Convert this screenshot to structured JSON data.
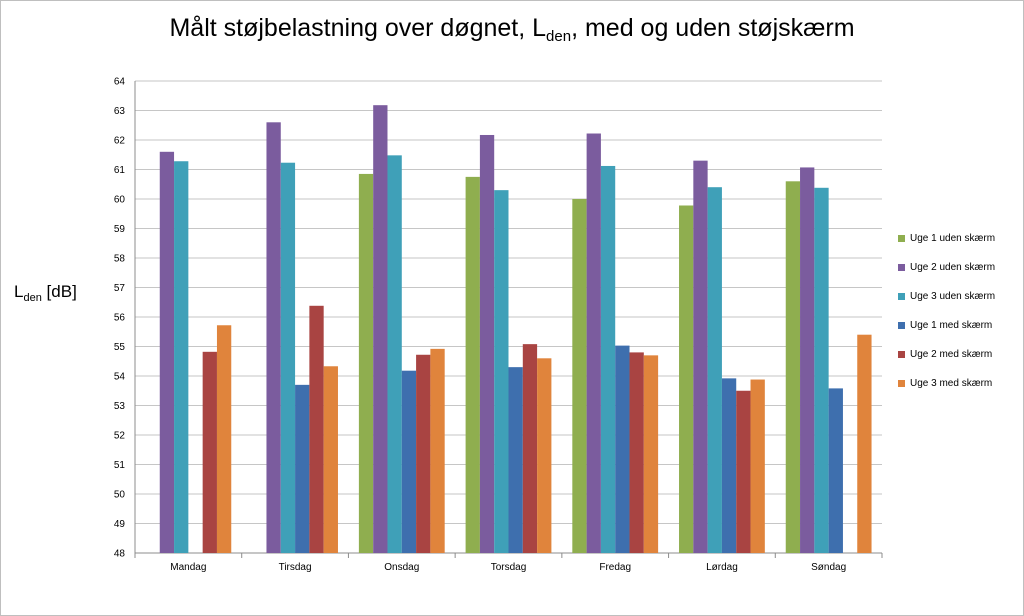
{
  "chart_data": {
    "type": "bar",
    "title_parts": [
      "Målt støjbelastning over døgnet, L",
      "den",
      ", med og uden støjskærm"
    ],
    "ylabel_parts": [
      "L",
      "den",
      " [dB]"
    ],
    "xlabel": "",
    "ylim": [
      48,
      64
    ],
    "y_ticks": [
      "48",
      "49",
      "50",
      "51",
      "52",
      "53",
      "54",
      "55",
      "56",
      "57",
      "58",
      "59",
      "60",
      "61",
      "62",
      "63",
      "64"
    ],
    "grid": true,
    "legend_position": "right",
    "categories": [
      "Mandag",
      "Tirsdag",
      "Onsdag",
      "Torsdag",
      "Fredag",
      "Lørdag",
      "Søndag"
    ],
    "series": [
      {
        "name": "Uge 1 uden skærm",
        "color": "#8FAE4F",
        "values": [
          null,
          null,
          60.85,
          60.75,
          60.0,
          59.78,
          60.6
        ]
      },
      {
        "name": "Uge 2 uden skærm",
        "color": "#7B5C9E",
        "values": [
          61.6,
          62.6,
          63.18,
          62.17,
          62.22,
          61.3,
          61.07
        ]
      },
      {
        "name": "Uge 3 uden skærm",
        "color": "#3FA0B8",
        "values": [
          61.28,
          61.23,
          61.48,
          60.3,
          61.12,
          60.4,
          60.38
        ]
      },
      {
        "name": "Uge 1 med skærm",
        "color": "#3E6FAE",
        "values": [
          null,
          53.7,
          54.18,
          54.3,
          55.03,
          53.92,
          53.58
        ]
      },
      {
        "name": "Uge 2 med skærm",
        "color": "#A94442",
        "values": [
          54.82,
          56.38,
          54.72,
          55.08,
          54.8,
          53.5,
          null
        ]
      },
      {
        "name": "Uge 3 med skærm",
        "color": "#E0843C",
        "values": [
          55.72,
          54.33,
          54.92,
          54.6,
          54.7,
          53.88,
          55.4
        ]
      }
    ]
  }
}
